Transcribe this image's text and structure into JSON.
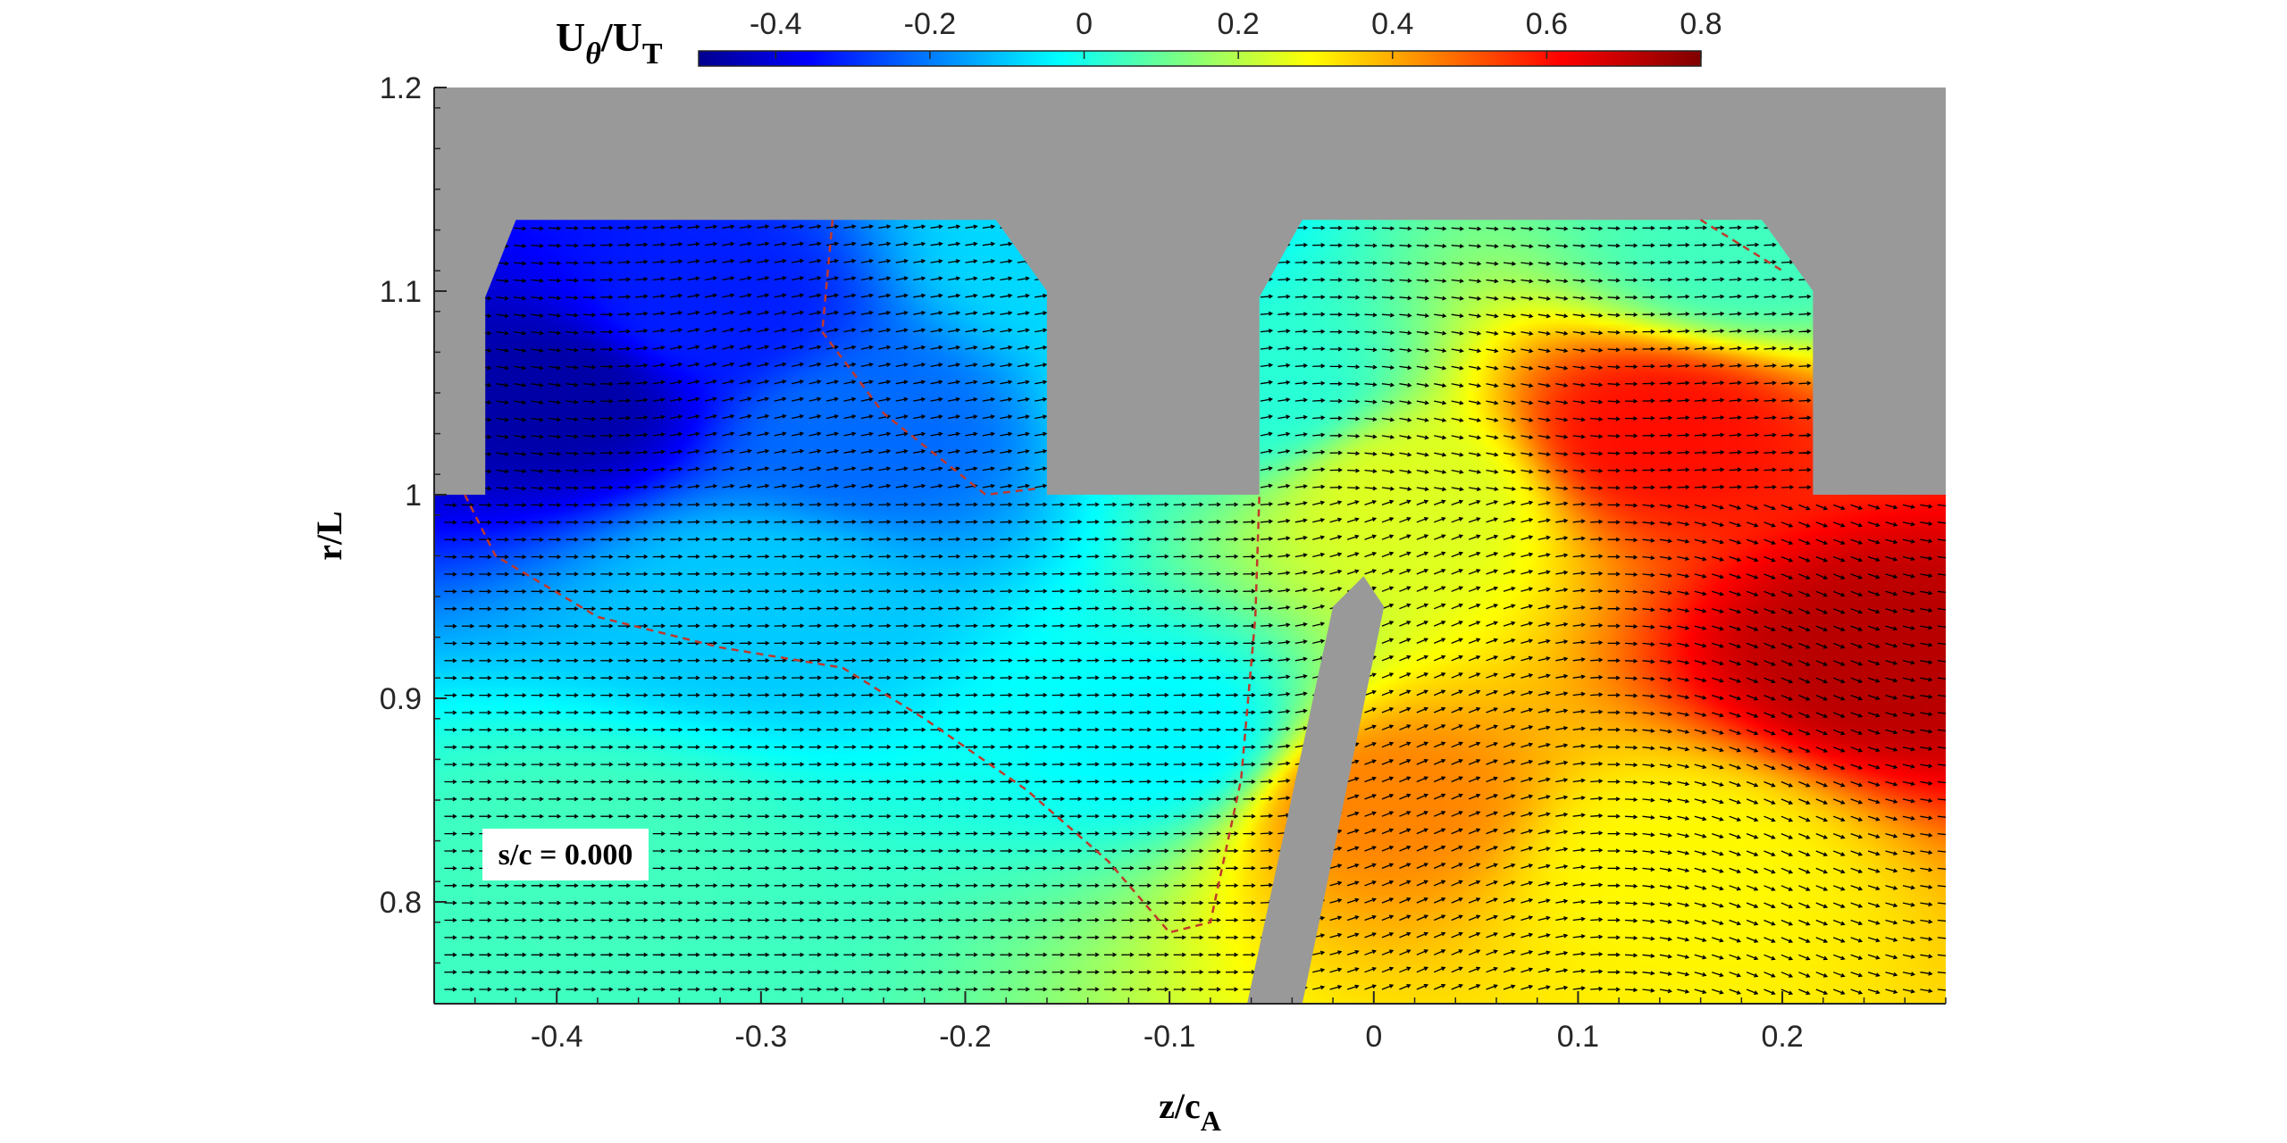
{
  "chart_data": {
    "type": "heatmap",
    "subtype": "contour-with-vector-field",
    "xlabel_main": "z/c",
    "xlabel_sub": "A",
    "ylabel": "r/L",
    "xlim": [
      -0.46,
      0.28
    ],
    "ylim": [
      0.75,
      1.2
    ],
    "xticks": [
      -0.4,
      -0.3,
      -0.2,
      -0.1,
      0,
      0.1,
      0.2
    ],
    "xtick_labels": [
      "-0.4",
      "-0.3",
      "-0.2",
      "-0.1",
      "0",
      "0.1",
      "0.2"
    ],
    "yticks": [
      0.8,
      0.9,
      1.0,
      1.1,
      1.2
    ],
    "ytick_labels": [
      "0.8",
      "0.9",
      "1",
      "1.1",
      "1.2"
    ],
    "colorbar": {
      "label_main": "U",
      "label_theta": "θ",
      "label_mid": "/U",
      "label_sub": "T",
      "range": [
        -0.5,
        0.8
      ],
      "ticks": [
        -0.4,
        -0.2,
        0,
        0.2,
        0.4,
        0.6,
        0.8
      ],
      "tick_labels": [
        "-0.4",
        "-0.2",
        "0",
        "0.2",
        "0.4",
        "0.6",
        "0.8"
      ],
      "colormap": "jet",
      "placement": "top"
    },
    "annotation": "s/c = 0.000",
    "background_color": "#999999",
    "zero_contour_color": "#c0392b",
    "grid": false,
    "field": {
      "description_ranges": [
        {
          "region": "upstream cavity",
          "z": [
            -0.44,
            -0.16
          ],
          "r": [
            0.93,
            1.135
          ],
          "value": -0.45
        },
        {
          "region": "upstream core",
          "z": [
            -0.46,
            -0.06
          ],
          "r": [
            0.75,
            1.0
          ],
          "value": 0.02
        },
        {
          "region": "downstream cavity",
          "z": [
            -0.06,
            0.21
          ],
          "r": [
            0.95,
            1.135
          ],
          "value": 0.55
        },
        {
          "region": "downstream core",
          "z": [
            -0.04,
            0.28
          ],
          "r": [
            0.75,
            1.0
          ],
          "value": 0.45
        }
      ],
      "centers": [
        {
          "z": -0.4,
          "r": 1.05,
          "value": -0.47
        },
        {
          "z": -0.33,
          "r": 1.09,
          "value": -0.32
        },
        {
          "z": -0.25,
          "r": 1.03,
          "value": -0.22
        },
        {
          "z": -0.3,
          "r": 0.95,
          "value": -0.1
        },
        {
          "z": -0.1,
          "r": 0.88,
          "value": -0.04
        },
        {
          "z": -0.38,
          "r": 0.82,
          "value": 0.05
        },
        {
          "z": -0.06,
          "r": 1.05,
          "value": 0.02
        },
        {
          "z": 0.0,
          "r": 0.85,
          "value": 0.45
        },
        {
          "z": 0.02,
          "r": 1.0,
          "value": 0.25
        },
        {
          "z": 0.14,
          "r": 1.03,
          "value": 0.6
        },
        {
          "z": 0.25,
          "r": 0.92,
          "value": 0.72
        },
        {
          "z": 0.15,
          "r": 0.82,
          "value": 0.3
        },
        {
          "z": 0.18,
          "r": 1.12,
          "value": 0.05
        },
        {
          "z": -0.15,
          "r": 1.12,
          "value": -0.08
        }
      ]
    },
    "geometry_data": {
      "upstream_cavity": [
        [
          -0.435,
          1.0
        ],
        [
          -0.435,
          1.097
        ],
        [
          -0.42,
          1.135
        ],
        [
          -0.185,
          1.135
        ],
        [
          -0.16,
          1.1
        ],
        [
          -0.16,
          1.0
        ]
      ],
      "downstream_cavity": [
        [
          -0.056,
          1.0
        ],
        [
          -0.056,
          1.097
        ],
        [
          -0.035,
          1.135
        ],
        [
          0.19,
          1.135
        ],
        [
          0.215,
          1.1
        ],
        [
          0.215,
          1.0
        ]
      ],
      "blade": [
        [
          -0.062,
          0.75
        ],
        [
          -0.02,
          0.945
        ],
        [
          -0.005,
          0.96
        ],
        [
          0.005,
          0.945
        ],
        [
          -0.035,
          0.75
        ]
      ],
      "zero_contour_a": [
        [
          -0.265,
          1.135
        ],
        [
          -0.27,
          1.08
        ],
        [
          -0.24,
          1.04
        ],
        [
          -0.19,
          1.0
        ],
        [
          -0.165,
          1.003
        ]
      ],
      "zero_contour_b": [
        [
          -0.445,
          1.0
        ],
        [
          -0.43,
          0.97
        ],
        [
          -0.38,
          0.94
        ],
        [
          -0.32,
          0.925
        ],
        [
          -0.26,
          0.915
        ],
        [
          -0.22,
          0.89
        ],
        [
          -0.17,
          0.855
        ],
        [
          -0.13,
          0.82
        ],
        [
          -0.1,
          0.785
        ],
        [
          -0.08,
          0.79
        ],
        [
          -0.065,
          0.86
        ],
        [
          -0.058,
          0.94
        ],
        [
          -0.056,
          1.0
        ]
      ],
      "zero_contour_c": [
        [
          0.16,
          1.135
        ],
        [
          0.2,
          1.11
        ]
      ]
    }
  }
}
